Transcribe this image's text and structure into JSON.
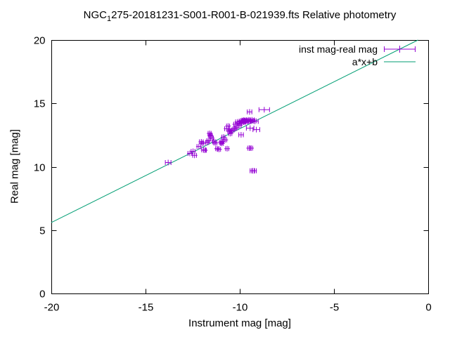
{
  "title": {
    "prefix": "NGC",
    "subscript": "1",
    "rest": "275-20181231-S001-R001-B-021939.fts Relative photometry"
  },
  "axes": {
    "x_label": "Instrument mag [mag]",
    "y_label": "Real mag [mag]",
    "x_tick_labels": [
      "-20",
      "-15",
      "-10",
      "-5",
      "0"
    ],
    "y_tick_labels": [
      "0",
      "5",
      "10",
      "15",
      "20"
    ]
  },
  "legend": {
    "series1_label": "inst mag-real mag",
    "series2_label": "a*x+b"
  },
  "colors": {
    "points": "#9400d3",
    "fit_line": "#009e73",
    "axis": "#000000",
    "background": "#ffffff",
    "text": "#000000"
  },
  "chart_data": {
    "type": "scatter",
    "title": "NGC_1275-20181231-S001-R001-B-021939.fts Relative photometry",
    "xlabel": "Instrument mag [mag]",
    "ylabel": "Real mag [mag]",
    "xlim": [
      -20,
      0
    ],
    "ylim": [
      0,
      20
    ],
    "x_tick_values": [
      -20,
      -15,
      -10,
      -5,
      0
    ],
    "y_tick_values": [
      0,
      5,
      10,
      15,
      20
    ],
    "grid": false,
    "legend_position": "top-right",
    "series": [
      {
        "name": "inst mag-real mag",
        "type": "scatter_xerrorbar",
        "color": "#9400d3",
        "points": [
          [
            -13.8,
            10.33,
            0.15
          ],
          [
            -12.65,
            11.05,
            0.1
          ],
          [
            -12.48,
            11.22,
            0.1
          ],
          [
            -12.4,
            10.9,
            0.1
          ],
          [
            -12.17,
            11.6,
            0.1
          ],
          [
            -12.04,
            11.97,
            0.1
          ],
          [
            -11.99,
            11.84,
            0.08
          ],
          [
            -11.92,
            11.33,
            0.1
          ],
          [
            -11.85,
            11.3,
            0.08
          ],
          [
            -11.73,
            11.92,
            0.08
          ],
          [
            -11.67,
            12.06,
            0.08
          ],
          [
            -11.6,
            12.63,
            0.08
          ],
          [
            -11.57,
            12.5,
            0.1
          ],
          [
            -11.54,
            12.42,
            0.08
          ],
          [
            -11.48,
            12.26,
            0.08
          ],
          [
            -11.36,
            11.97,
            0.08
          ],
          [
            -11.3,
            11.88,
            0.08
          ],
          [
            -11.2,
            11.43,
            0.08
          ],
          [
            -11.1,
            11.37,
            0.08
          ],
          [
            -11.0,
            11.92,
            0.08
          ],
          [
            -10.95,
            11.84,
            0.08
          ],
          [
            -10.92,
            12.0,
            0.08
          ],
          [
            -10.87,
            12.34,
            0.08
          ],
          [
            -10.77,
            12.12,
            0.08
          ],
          [
            -10.7,
            13.0,
            0.1
          ],
          [
            -10.67,
            11.43,
            0.08
          ],
          [
            -10.62,
            13.21,
            0.08
          ],
          [
            -10.56,
            12.8,
            0.08
          ],
          [
            -10.5,
            12.62,
            0.08
          ],
          [
            -10.44,
            12.85,
            0.08
          ],
          [
            -10.37,
            12.9,
            0.08
          ],
          [
            -10.28,
            13.0,
            0.08
          ],
          [
            -10.24,
            13.35,
            0.08
          ],
          [
            -10.18,
            13.08,
            0.08
          ],
          [
            -10.12,
            13.54,
            0.1
          ],
          [
            -10.05,
            13.45,
            0.08
          ],
          [
            -10.0,
            13.26,
            0.08
          ],
          [
            -9.95,
            13.6,
            0.08
          ],
          [
            -9.93,
            12.52,
            0.12
          ],
          [
            -9.9,
            13.5,
            0.1
          ],
          [
            -9.85,
            13.62,
            0.08
          ],
          [
            -9.8,
            13.68,
            0.08
          ],
          [
            -9.78,
            13.52,
            0.08
          ],
          [
            -9.72,
            13.6,
            0.1
          ],
          [
            -9.68,
            13.55,
            0.08
          ],
          [
            -9.65,
            13.68,
            0.1
          ],
          [
            -9.6,
            13.62,
            0.08
          ],
          [
            -9.55,
            13.7,
            0.1
          ],
          [
            -9.52,
            13.58,
            0.08
          ],
          [
            -9.5,
            11.47,
            0.08
          ],
          [
            -9.48,
            14.33,
            0.12
          ],
          [
            -9.45,
            13.05,
            0.2
          ],
          [
            -9.45,
            13.68,
            0.1
          ],
          [
            -9.42,
            13.6,
            0.12
          ],
          [
            -9.4,
            11.47,
            0.08
          ],
          [
            -9.35,
            13.7,
            0.12
          ],
          [
            -9.33,
            9.68,
            0.12
          ],
          [
            -9.28,
            13.62,
            0.15
          ],
          [
            -9.24,
            9.68,
            0.12
          ],
          [
            -9.2,
            13.58,
            0.18
          ],
          [
            -9.12,
            12.93,
            0.18
          ],
          [
            -8.7,
            14.5,
            0.28
          ]
        ]
      },
      {
        "name": "a*x+b",
        "type": "line",
        "color": "#009e73",
        "slope": 0.74,
        "intercept": 20.4
      }
    ]
  }
}
